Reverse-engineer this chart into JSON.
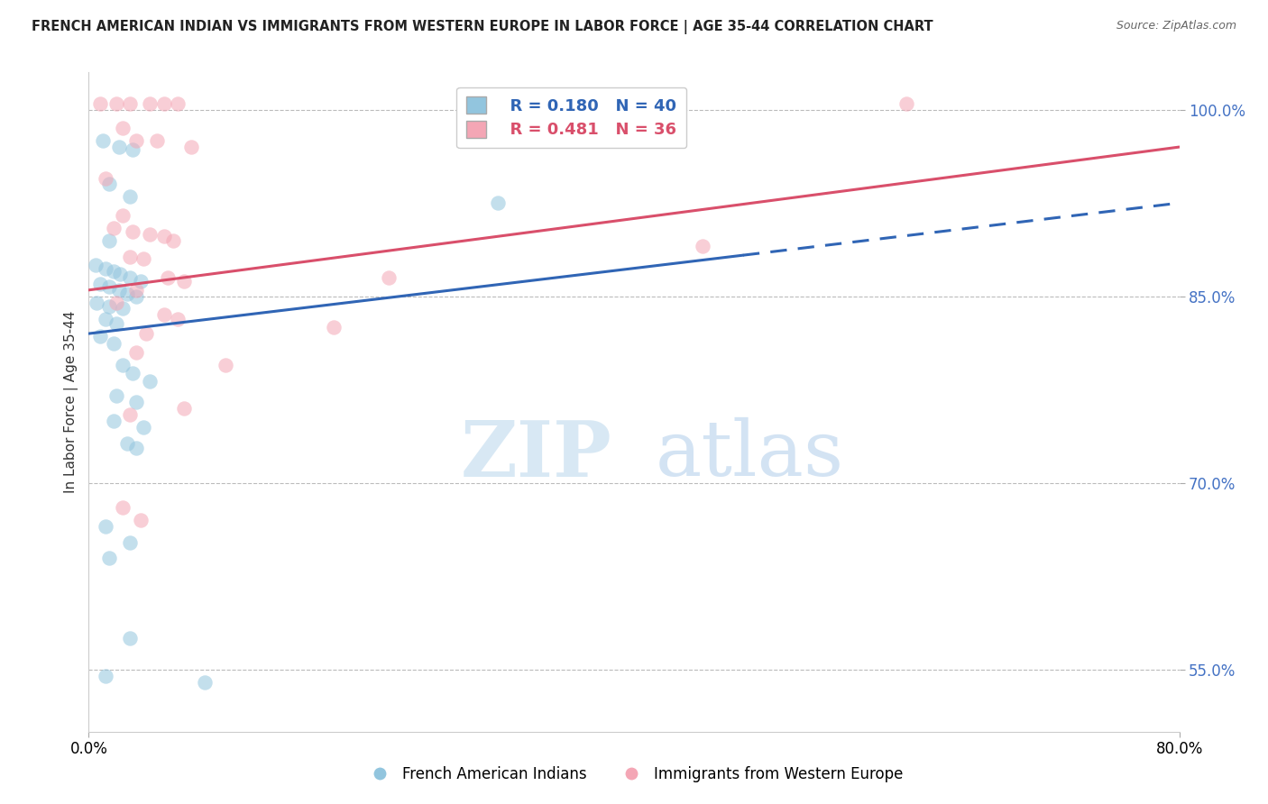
{
  "title": "FRENCH AMERICAN INDIAN VS IMMIGRANTS FROM WESTERN EUROPE IN LABOR FORCE | AGE 35-44 CORRELATION CHART",
  "source": "Source: ZipAtlas.com",
  "ylabel": "In Labor Force | Age 35-44",
  "xlim": [
    0.0,
    80.0
  ],
  "ylim": [
    50.0,
    103.0
  ],
  "yticks": [
    55.0,
    70.0,
    85.0,
    100.0
  ],
  "xticks": [
    0.0,
    80.0
  ],
  "blue_R": 0.18,
  "blue_N": 40,
  "pink_R": 0.481,
  "pink_N": 36,
  "blue_color": "#92c5de",
  "pink_color": "#f4a6b5",
  "blue_line_color": "#3065b5",
  "pink_line_color": "#d94f6b",
  "blue_points": [
    [
      1.0,
      97.5
    ],
    [
      2.2,
      97.0
    ],
    [
      3.2,
      96.8
    ],
    [
      1.5,
      94.0
    ],
    [
      3.0,
      93.0
    ],
    [
      1.5,
      89.5
    ],
    [
      0.5,
      87.5
    ],
    [
      1.2,
      87.2
    ],
    [
      1.8,
      87.0
    ],
    [
      2.3,
      86.8
    ],
    [
      3.0,
      86.5
    ],
    [
      3.8,
      86.2
    ],
    [
      0.8,
      86.0
    ],
    [
      1.5,
      85.8
    ],
    [
      2.2,
      85.5
    ],
    [
      2.8,
      85.2
    ],
    [
      3.5,
      85.0
    ],
    [
      0.6,
      84.5
    ],
    [
      1.5,
      84.2
    ],
    [
      2.5,
      84.0
    ],
    [
      1.2,
      83.2
    ],
    [
      2.0,
      82.8
    ],
    [
      0.8,
      81.8
    ],
    [
      1.8,
      81.2
    ],
    [
      2.5,
      79.5
    ],
    [
      3.2,
      78.8
    ],
    [
      4.5,
      78.2
    ],
    [
      2.0,
      77.0
    ],
    [
      3.5,
      76.5
    ],
    [
      1.8,
      75.0
    ],
    [
      4.0,
      74.5
    ],
    [
      2.8,
      73.2
    ],
    [
      3.5,
      72.8
    ],
    [
      1.2,
      66.5
    ],
    [
      3.0,
      65.2
    ],
    [
      1.5,
      64.0
    ],
    [
      3.0,
      57.5
    ],
    [
      1.2,
      54.5
    ],
    [
      8.5,
      54.0
    ],
    [
      30.0,
      92.5
    ]
  ],
  "pink_points": [
    [
      0.8,
      100.5
    ],
    [
      2.0,
      100.5
    ],
    [
      3.0,
      100.5
    ],
    [
      4.5,
      100.5
    ],
    [
      5.5,
      100.5
    ],
    [
      6.5,
      100.5
    ],
    [
      2.5,
      98.5
    ],
    [
      3.5,
      97.5
    ],
    [
      5.0,
      97.5
    ],
    [
      7.5,
      97.0
    ],
    [
      1.2,
      94.5
    ],
    [
      2.5,
      91.5
    ],
    [
      1.8,
      90.5
    ],
    [
      3.2,
      90.2
    ],
    [
      4.5,
      90.0
    ],
    [
      5.5,
      89.8
    ],
    [
      6.2,
      89.5
    ],
    [
      3.0,
      88.2
    ],
    [
      4.0,
      88.0
    ],
    [
      5.8,
      86.5
    ],
    [
      7.0,
      86.2
    ],
    [
      3.5,
      85.5
    ],
    [
      2.0,
      84.5
    ],
    [
      5.5,
      83.5
    ],
    [
      6.5,
      83.2
    ],
    [
      4.2,
      82.0
    ],
    [
      3.5,
      80.5
    ],
    [
      3.0,
      75.5
    ],
    [
      2.5,
      68.0
    ],
    [
      3.8,
      67.0
    ],
    [
      60.0,
      100.5
    ],
    [
      45.0,
      89.0
    ],
    [
      22.0,
      86.5
    ],
    [
      18.0,
      82.5
    ],
    [
      10.0,
      79.5
    ],
    [
      7.0,
      76.0
    ]
  ],
  "blue_trend_x": [
    0.0,
    80.0
  ],
  "blue_trend_y": [
    82.0,
    92.5
  ],
  "blue_dash_start_x": 48.0,
  "pink_trend_x": [
    0.0,
    80.0
  ],
  "pink_trend_y": [
    85.5,
    97.0
  ],
  "watermark_zip": "ZIP",
  "watermark_atlas": "atlas"
}
